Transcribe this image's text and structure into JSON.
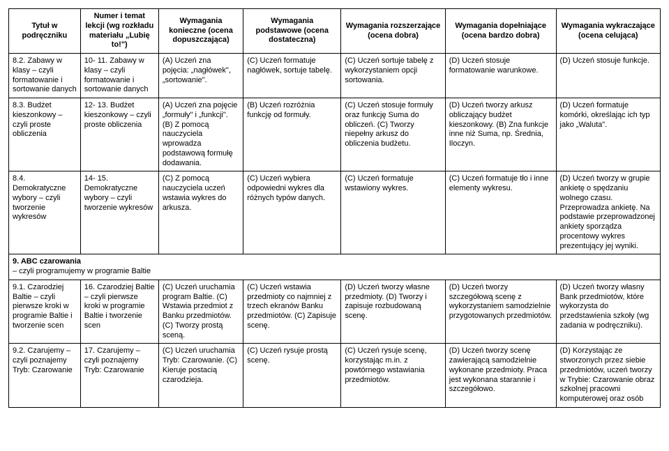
{
  "headers": [
    "Tytuł\nw podręczniku",
    "Numer i temat lekcji\n(wg rozkładu materiału „Lubię to!\")",
    "Wymagania konieczne (ocena dopuszczająca)",
    "Wymagania podstawowe (ocena dostateczna)",
    "Wymagania rozszerzające (ocena dobra)",
    "Wymagania dopełniające (ocena bardzo dobra)",
    "Wymagania wykraczające (ocena celująca)"
  ],
  "rows": [
    {
      "type": "data",
      "cells": [
        "8.2. Zabawy w klasy – czyli formatowanie i sortowanie danych",
        "10- 11. Zabawy w klasy – czyli formatowanie i sortowanie danych",
        "(A) Uczeń zna pojęcia: „nagłówek\", „sortowanie\".",
        "(C) Uczeń formatuje nagłówek, sortuje tabelę.",
        "(C) Uczeń sortuje tabelę z wykorzystaniem opcji sortowania.",
        "(D) Uczeń stosuje formatowanie warunkowe.",
        "(D) Uczeń stosuje funkcje."
      ]
    },
    {
      "type": "data",
      "cells": [
        "8.3. Budżet kieszonkowy – czyli proste obliczenia",
        "12- 13. Budżet kieszonkowy – czyli proste obliczenia",
        "(A) Uczeń zna pojęcie „formuły\" i „funkcji\". (B) Z pomocą nauczyciela wprowadza podstawową formułę dodawania.",
        "(B) Uczeń rozróżnia funkcję od formuły.",
        "(C) Uczeń stosuje formuły oraz funkcję Suma do obliczeń. (C) Tworzy niepełny arkusz do obliczenia budżetu.",
        "(D) Uczeń tworzy arkusz obliczający budżet kieszonkowy. (B) Zna funkcje inne niż Suma, np. Średnia, Iloczyn.",
        "(D) Uczeń formatuje komórki, określając ich typ jako „Waluta\"."
      ]
    },
    {
      "type": "data",
      "cells": [
        "8.4. Demokratyczne wybory – czyli tworzenie wykresów",
        "14- 15. Demokratyczne wybory – czyli tworzenie wykresów",
        "(C) Z pomocą nauczyciela uczeń wstawia wykres do arkusza.",
        "(C) Uczeń wybiera odpowiedni wykres dla różnych typów danych.",
        "(C) Uczeń formatuje wstawiony wykres.",
        "(C) Uczeń formatuje tło i inne elementy wykresu.",
        "(D) Uczeń tworzy w grupie ankietę o spędzaniu wolnego czasu. Przeprowadza ankietę. Na podstawie przeprowadzonej ankiety sporządza procentowy wykres prezentujący jej wyniki."
      ]
    },
    {
      "type": "section",
      "text": "9. ABC czarowania\n– czyli programujemy w programie Baltie"
    },
    {
      "type": "data",
      "cells": [
        "9.1. Czarodziej Baltie – czyli pierwsze kroki w programie Baltie i tworzenie scen",
        "16. Czarodziej Baltie – czyli pierwsze kroki w programie Baltie i tworzenie scen",
        "(C) Uczeń uruchamia program Baltie. (C) Wstawia przedmiot z Banku przedmiotów. (C) Tworzy prostą sceną.",
        "(C) Uczeń wstawia przedmioty co najmniej z trzech ekranów Banku przedmiotów. (C) Zapisuje scenę.",
        "(D) Uczeń tworzy własne przedmioty. (D) Tworzy i zapisuje rozbudowaną scenę.",
        "(D) Uczeń tworzy szczegółową scenę z wykorzystaniem samodzielnie przygotowanych przedmiotów.",
        "(D) Uczeń tworzy własny Bank przedmiotów, które wykorzysta do przedstawienia szkoły (wg zadania w podręczniku)."
      ]
    },
    {
      "type": "data",
      "cells": [
        "9.2. Czarujemy – czyli poznajemy Tryb: Czarowanie",
        "17. Czarujemy – czyli poznajemy Tryb: Czarowanie",
        "(C) Uczeń uruchamia Tryb: Czarowanie. (C) Kieruje postacią czarodzieja.",
        "(C) Uczeń rysuje prostą scenę.",
        "(C) Uczeń rysuje scenę, korzystając m.in. z powtórnego wstawiania przedmiotów.",
        "(D) Uczeń tworzy scenę zawierającą samodzielnie wykonane przedmioty. Praca jest wykonana starannie i szczegółowo.",
        "(D) Korzystając ze stworzonych przez siebie przedmiotów, uczeń tworzy w Trybie: Czarowanie obraz szkolnej pracowni komputerowej oraz osób"
      ]
    }
  ]
}
